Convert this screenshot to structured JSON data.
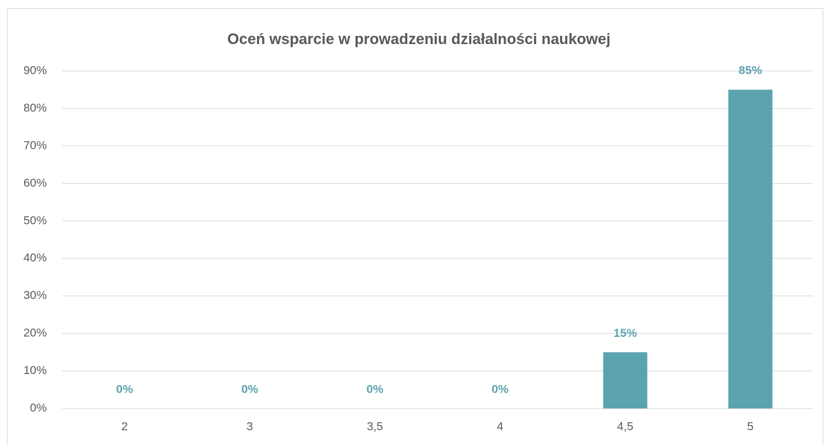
{
  "chart_data": {
    "type": "bar",
    "title": "Oceń wsparcie w prowadzeniu działalności naukowej",
    "categories": [
      "2",
      "3",
      "3,5",
      "4",
      "4,5",
      "5"
    ],
    "values": [
      0,
      0,
      0,
      0,
      15,
      85
    ],
    "value_labels": [
      "0%",
      "0%",
      "0%",
      "0%",
      "15%",
      "85%"
    ],
    "color": "#5ba3af",
    "ylim": [
      0,
      90
    ],
    "yticks": [
      {
        "value": 0,
        "label": "0%"
      },
      {
        "value": 10,
        "label": "10%"
      },
      {
        "value": 20,
        "label": "20%"
      },
      {
        "value": 30,
        "label": "30%"
      },
      {
        "value": 40,
        "label": "40%"
      },
      {
        "value": 50,
        "label": "50%"
      },
      {
        "value": 60,
        "label": "60%"
      },
      {
        "value": 70,
        "label": "70%"
      },
      {
        "value": 80,
        "label": "80%"
      },
      {
        "value": 90,
        "label": "90%"
      }
    ],
    "grid": true
  }
}
